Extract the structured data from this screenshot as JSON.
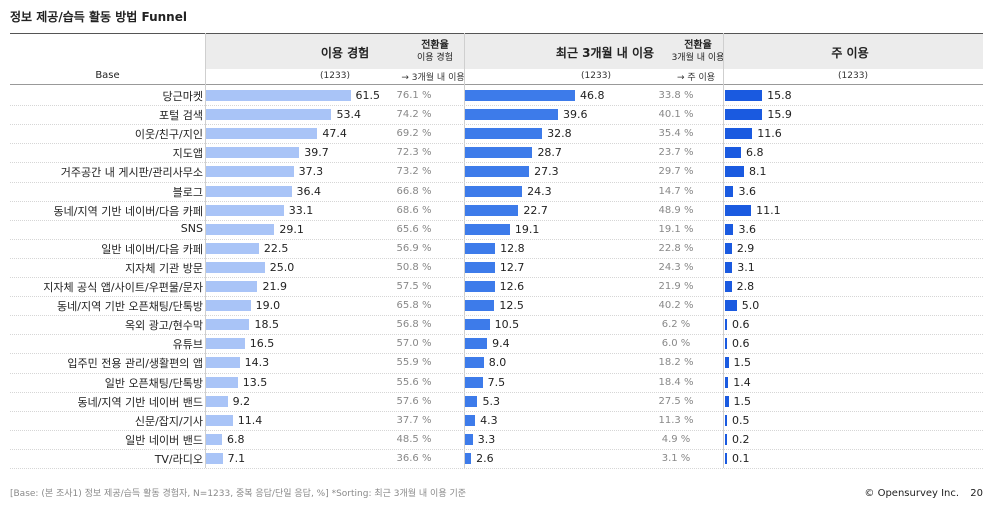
{
  "title": "정보 제공/습득 활동 방법 Funnel",
  "header": {
    "base_label": "Base",
    "col1": "이용 경험",
    "conv1_title": "전환율",
    "conv1_sub1": "이용 경험",
    "conv1_sub2": "→ 3개월 내 이용",
    "col2": "최근 3개월 내 이용",
    "conv2_title": "전환율",
    "conv2_sub1": "3개월 내 이용",
    "conv2_sub2": "→ 주 이용",
    "col3": "주 이용",
    "n1": "(1233)",
    "n2": "(1233)",
    "n3": "(1233)"
  },
  "colors": {
    "experience": "#a9c4f7",
    "recent": "#3d7bea",
    "main": "#1a5ae0"
  },
  "chart_data": {
    "type": "bar",
    "title": "정보 제공/습득 활동 방법 Funnel",
    "categories": [
      "당근마켓",
      "포털 검색",
      "이웃/친구/지인",
      "지도앱",
      "거주공간 내 게시판/관리사무소",
      "블로그",
      "동네/지역 기반 네이버/다음 카페",
      "SNS",
      "일반 네이버/다음 카페",
      "지자체 기관 방문",
      "지자체 공식 앱/사이트/우편물/문자",
      "동네/지역 기반 오픈채팅/단톡방",
      "옥외 광고/현수막",
      "유튜브",
      "입주민 전용 관리/생활편의 앱",
      "일반 오픈채팅/단톡방",
      "동네/지역 기반 네이버 밴드",
      "신문/잡지/기사",
      "일반 네이버 밴드",
      "TV/라디오"
    ],
    "series": [
      {
        "name": "이용 경험",
        "values": [
          61.5,
          53.4,
          47.4,
          39.7,
          37.3,
          36.4,
          33.1,
          29.1,
          22.5,
          25.0,
          21.9,
          19.0,
          18.5,
          16.5,
          14.3,
          13.5,
          9.2,
          11.4,
          6.8,
          7.1
        ],
        "labels": [
          "61.5",
          "53.4",
          "47.4",
          "39.7",
          "37.3",
          "36.4",
          "33.1",
          "29.1",
          "22.5",
          "25.0",
          "21.9",
          "19.0",
          "18.5",
          "16.5",
          "14.3",
          "13.5",
          "9.2",
          "11.4",
          "6.8",
          "7.1"
        ]
      },
      {
        "name": "전환율 (이용 경험 → 3개월 내 이용)",
        "labels": [
          "76.1 %",
          "74.2 %",
          "69.2 %",
          "72.3 %",
          "73.2 %",
          "66.8 %",
          "68.6 %",
          "65.6 %",
          "56.9 %",
          "50.8 %",
          "57.5 %",
          "65.8 %",
          "56.8 %",
          "57.0 %",
          "55.9 %",
          "55.6 %",
          "57.6 %",
          "37.7 %",
          "48.5 %",
          "36.6 %"
        ]
      },
      {
        "name": "최근 3개월 내 이용",
        "values": [
          46.8,
          39.6,
          32.8,
          28.7,
          27.3,
          24.3,
          22.7,
          19.1,
          12.8,
          12.7,
          12.6,
          12.5,
          10.5,
          9.4,
          8.0,
          7.5,
          5.3,
          4.3,
          3.3,
          2.6
        ],
        "labels": [
          "46.8",
          "39.6",
          "32.8",
          "28.7",
          "27.3",
          "24.3",
          "22.7",
          "19.1",
          "12.8",
          "12.7",
          "12.6",
          "12.5",
          "10.5",
          "9.4",
          "8.0",
          "7.5",
          "5.3",
          "4.3",
          "3.3",
          "2.6"
        ]
      },
      {
        "name": "전환율 (3개월 내 이용 → 주 이용)",
        "labels": [
          "33.8 %",
          "40.1 %",
          "35.4 %",
          "23.7 %",
          "29.7 %",
          "14.7 %",
          "48.9 %",
          "19.1 %",
          "22.8 %",
          "24.3 %",
          "21.9 %",
          "40.2 %",
          "6.2 %",
          "6.0 %",
          "18.2 %",
          "18.4 %",
          "27.5 %",
          "11.3 %",
          "4.9 %",
          "3.1 %"
        ]
      },
      {
        "name": "주 이용",
        "values": [
          15.8,
          15.9,
          11.6,
          6.8,
          8.1,
          3.6,
          11.1,
          3.6,
          2.9,
          3.1,
          2.8,
          5.0,
          0.6,
          0.6,
          1.5,
          1.4,
          1.5,
          0.5,
          0.2,
          0.1
        ],
        "labels": [
          "15.8",
          "15.9",
          "11.6",
          "6.8",
          "8.1",
          "3.6",
          "11.1",
          "3.6",
          "2.9",
          "3.1",
          "2.8",
          "5.0",
          "0.6",
          "0.6",
          "1.5",
          "1.4",
          "1.5",
          "0.5",
          "0.2",
          "0.1"
        ]
      }
    ],
    "unit": "%"
  },
  "footer": "[Base: (본 조사1) 정보 제공/습득 활동 경험자, N=1233, 중복 응답/단일 응답, %] *Sorting: 최근 3개월 내 이용 기준",
  "brand": "© Opensurvey Inc.",
  "page_number": "20"
}
